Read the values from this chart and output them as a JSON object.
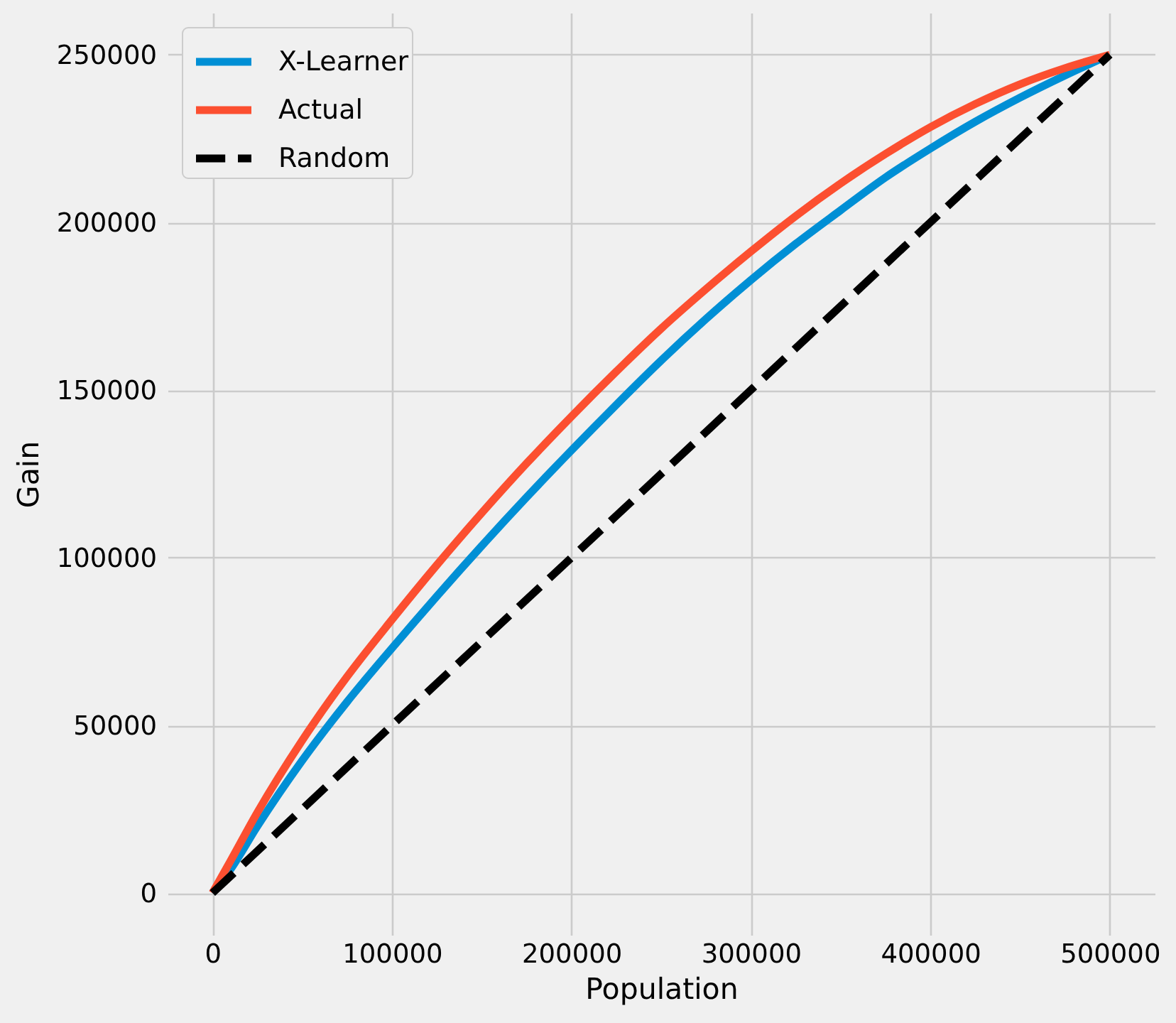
{
  "chart_data": {
    "type": "line",
    "xlabel": "Population",
    "ylabel": "Gain",
    "x": [
      0,
      10000,
      25000,
      50000,
      75000,
      100000,
      125000,
      150000,
      175000,
      200000,
      225000,
      250000,
      275000,
      300000,
      325000,
      350000,
      375000,
      400000,
      425000,
      450000,
      475000,
      500000
    ],
    "series": [
      {
        "name": "X-Learner",
        "color": "#008fd5",
        "values": [
          0,
          7000,
          19900,
          39500,
          57000,
          73000,
          88500,
          103500,
          118000,
          132000,
          145600,
          158800,
          171200,
          182800,
          193600,
          203600,
          213400,
          222000,
          230000,
          237200,
          243800,
          250000
        ]
      },
      {
        "name": "Actual",
        "color": "#fc4f30",
        "values": [
          0,
          9500,
          24000,
          45500,
          64500,
          81500,
          97800,
          113300,
          128100,
          142100,
          155500,
          168300,
          180100,
          191300,
          201900,
          211600,
          220400,
          228400,
          235300,
          241200,
          246000,
          250000
        ]
      },
      {
        "name": "Random",
        "color": "#000000",
        "line_style": "dashed",
        "x": [
          0,
          500000
        ],
        "values": [
          0,
          250000
        ]
      }
    ],
    "xlim": [
      -25000,
      525000
    ],
    "ylim": [
      -12500,
      262500
    ],
    "xticks": [
      0,
      100000,
      200000,
      300000,
      400000,
      500000
    ],
    "yticks": [
      0,
      50000,
      100000,
      150000,
      200000,
      250000
    ],
    "grid": true,
    "legend": "top left"
  }
}
